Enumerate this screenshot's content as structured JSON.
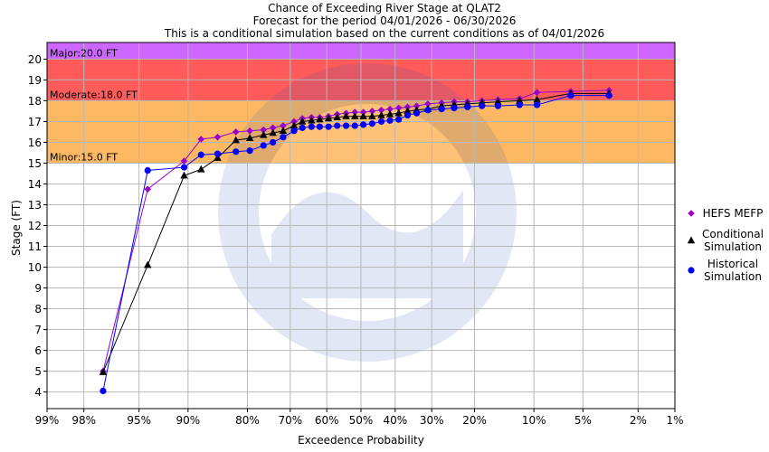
{
  "chart_data": {
    "type": "line",
    "title": [
      "Chance of Exceeding River Stage at QLAT2",
      "Forecast for the period 04/01/2026 - 06/30/2026",
      "This is a conditional simulation based on the current conditions as of 04/01/2026"
    ],
    "xlabel": "Exceedence Probability",
    "ylabel": "Stage (FT)",
    "x_scale": "normal-probability (reversed)",
    "x_ticks": [
      {
        "p": 99,
        "label": "99%"
      },
      {
        "p": 98,
        "label": "98%"
      },
      {
        "p": 95,
        "label": "95%"
      },
      {
        "p": 90,
        "label": "90%"
      },
      {
        "p": 80,
        "label": "80%"
      },
      {
        "p": 70,
        "label": "70%"
      },
      {
        "p": 60,
        "label": "60%"
      },
      {
        "p": 50,
        "label": "50%"
      },
      {
        "p": 40,
        "label": "40%"
      },
      {
        "p": 30,
        "label": "30%"
      },
      {
        "p": 20,
        "label": "20%"
      },
      {
        "p": 10,
        "label": "10%"
      },
      {
        "p": 5,
        "label": "5%"
      },
      {
        "p": 2,
        "label": "2%"
      },
      {
        "p": 1,
        "label": "1%"
      }
    ],
    "ylim": [
      3.2,
      20.8
    ],
    "y_ticks": [
      4,
      5,
      6,
      7,
      8,
      9,
      10,
      11,
      12,
      13,
      14,
      15,
      16,
      17,
      18,
      19,
      20
    ],
    "grid": true,
    "legend_position": "right",
    "flood_categories": [
      {
        "name": "Minor",
        "label": "Minor:15.0 FT",
        "from": 15.0,
        "to": 18.0,
        "color": "#fdb863"
      },
      {
        "name": "Moderate",
        "label": "Moderate:18.0 FT",
        "from": 18.0,
        "to": 20.0,
        "color": "#ff5b5b"
      },
      {
        "name": "Major",
        "label": "Major:20.0 FT",
        "from": 20.0,
        "to": 20.8,
        "color": "#cc66ff"
      }
    ],
    "series": [
      {
        "name": "HEFS MEFP",
        "marker": "diamond",
        "color": "#9900cc",
        "x": [
          97.2,
          94.3,
          90.5,
          88.2,
          85.6,
          82.3,
          79.5,
          76.5,
          74.3,
          71.8,
          69.0,
          66.8,
          64.3,
          62.0,
          59.5,
          57.0,
          54.4,
          51.8,
          49.3,
          46.7,
          44.0,
          41.5,
          39.0,
          36.5,
          34.0,
          31.0,
          27.5,
          24.5,
          21.5,
          18.5,
          15.5,
          12.0,
          9.6,
          6.0,
          3.3
        ],
        "y": [
          5.0,
          13.75,
          15.1,
          16.15,
          16.25,
          16.5,
          16.55,
          16.6,
          16.7,
          16.8,
          17.0,
          17.15,
          17.2,
          17.2,
          17.25,
          17.35,
          17.4,
          17.45,
          17.45,
          17.5,
          17.55,
          17.6,
          17.65,
          17.7,
          17.75,
          17.85,
          17.9,
          17.95,
          17.95,
          18.0,
          18.05,
          18.1,
          18.4,
          18.45,
          18.5
        ]
      },
      {
        "name": "Conditional Simulation",
        "marker": "triangle",
        "color": "#000000",
        "x": [
          97.2,
          94.3,
          90.5,
          88.2,
          85.6,
          82.3,
          79.5,
          76.5,
          74.3,
          71.8,
          69.0,
          66.8,
          64.3,
          62.0,
          59.5,
          57.0,
          54.4,
          51.8,
          49.3,
          46.7,
          44.0,
          41.5,
          39.0,
          36.5,
          34.0,
          31.0,
          27.5,
          24.5,
          21.5,
          18.5,
          15.5,
          12.0,
          9.6,
          6.0,
          3.3
        ],
        "y": [
          4.95,
          10.1,
          14.4,
          14.7,
          15.25,
          16.1,
          16.2,
          16.35,
          16.45,
          16.55,
          16.8,
          17.0,
          17.05,
          17.1,
          17.15,
          17.2,
          17.25,
          17.25,
          17.25,
          17.25,
          17.3,
          17.35,
          17.4,
          17.5,
          17.55,
          17.6,
          17.75,
          17.8,
          17.85,
          17.9,
          17.95,
          18.0,
          18.05,
          18.35,
          18.35
        ]
      },
      {
        "name": "Historical Simulation",
        "marker": "circle",
        "color": "#0000ff",
        "x": [
          97.2,
          94.3,
          90.5,
          88.2,
          85.6,
          82.3,
          79.5,
          76.5,
          74.3,
          71.8,
          69.0,
          66.8,
          64.3,
          62.0,
          59.5,
          57.0,
          54.4,
          51.8,
          49.3,
          46.7,
          44.0,
          41.5,
          39.0,
          36.5,
          34.0,
          31.0,
          27.5,
          24.5,
          21.5,
          18.5,
          15.5,
          12.0,
          9.6,
          6.0,
          3.3
        ],
        "y": [
          4.05,
          14.65,
          14.8,
          15.4,
          15.45,
          15.55,
          15.6,
          15.85,
          16.0,
          16.25,
          16.55,
          16.7,
          16.75,
          16.75,
          16.75,
          16.8,
          16.8,
          16.8,
          16.85,
          16.9,
          17.0,
          17.05,
          17.1,
          17.3,
          17.4,
          17.55,
          17.6,
          17.65,
          17.7,
          17.75,
          17.75,
          17.8,
          17.8,
          18.25,
          18.25
        ]
      }
    ]
  }
}
